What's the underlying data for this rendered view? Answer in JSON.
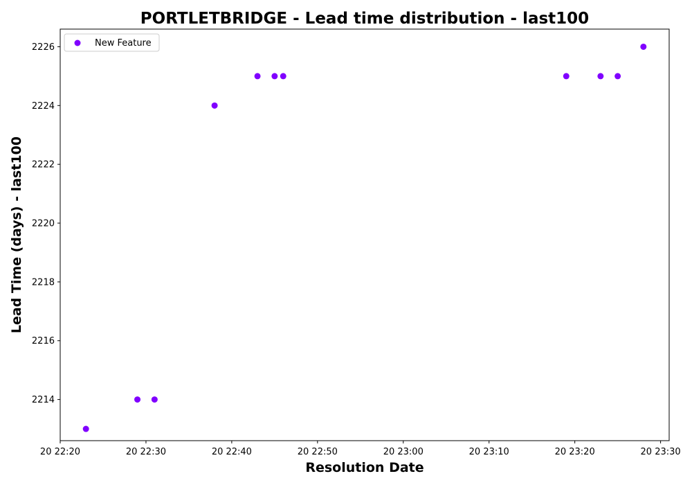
{
  "chart_data": {
    "type": "scatter",
    "title": "PORTLETBRIDGE - Lead time distribution - last100",
    "xlabel": "Resolution Date",
    "ylabel": "Lead Time (days) - last100",
    "x_is_time": true,
    "x_ticks": [
      "20 22:20",
      "20 22:30",
      "20 22:40",
      "20 22:50",
      "20 23:00",
      "20 23:10",
      "20 23:20",
      "20 23:30"
    ],
    "y_ticks": [
      2214,
      2216,
      2218,
      2220,
      2222,
      2224,
      2226
    ],
    "xlim": [
      "20 22:20",
      "20 23:31"
    ],
    "ylim": [
      2212.6,
      2226.6
    ],
    "grid": false,
    "legend_position": "top-left",
    "series": [
      {
        "name": "New Feature",
        "color": "#8000ff",
        "points": [
          {
            "x": "20 22:23",
            "y": 2213
          },
          {
            "x": "20 22:29",
            "y": 2214
          },
          {
            "x": "20 22:31",
            "y": 2214
          },
          {
            "x": "20 22:38",
            "y": 2224
          },
          {
            "x": "20 22:43",
            "y": 2225
          },
          {
            "x": "20 22:45",
            "y": 2225
          },
          {
            "x": "20 22:46",
            "y": 2225
          },
          {
            "x": "20 23:19",
            "y": 2225
          },
          {
            "x": "20 23:23",
            "y": 2225
          },
          {
            "x": "20 23:25",
            "y": 2225
          },
          {
            "x": "20 23:28",
            "y": 2226
          }
        ]
      }
    ]
  }
}
